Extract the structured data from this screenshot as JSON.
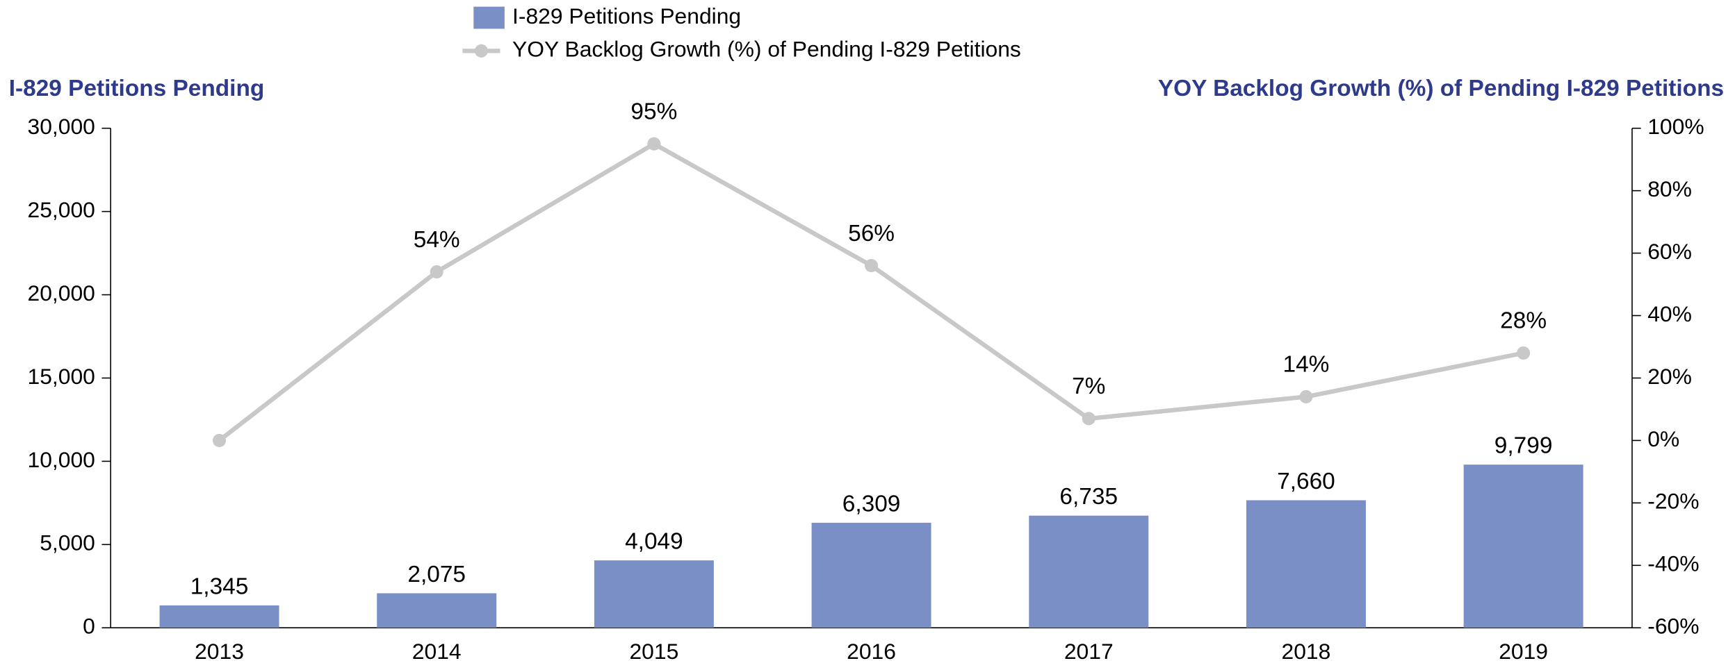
{
  "chart_data": {
    "type": "bar-line",
    "categories": [
      "2013",
      "2014",
      "2015",
      "2016",
      "2017",
      "2018",
      "2019"
    ],
    "series": [
      {
        "name": "I-829 Petitions Pending",
        "color": "#7b8fc7",
        "values": [
          1345,
          2075,
          4049,
          6309,
          6735,
          7660,
          9799
        ],
        "value_labels": [
          "1,345",
          "2,075",
          "4,049",
          "6,309",
          "6,735",
          "7,660",
          "9,799"
        ]
      },
      {
        "name": "YOY Backlog Growth (%) of Pending I-829 Petitions",
        "color": "#c8c8c8",
        "axis": "y2",
        "values": [
          0,
          54,
          95,
          56,
          7,
          14,
          28
        ],
        "value_labels": [
          null,
          "54%",
          "95%",
          "56%",
          "7%",
          "14%",
          "28%"
        ]
      }
    ],
    "y_label": "I-829 Petitions Pending",
    "y2_label": "YOY Backlog Growth (%) of Pending I-829 Petitions",
    "ylim": [
      0,
      30000
    ],
    "yticks": [
      0,
      {
        "value": 5000,
        "label": "5,000"
      },
      {
        "value": 10000,
        "label": "10,000"
      },
      {
        "value": 15000,
        "label": "15,000"
      },
      {
        "value": 20000,
        "label": "20,000"
      },
      {
        "value": 25000,
        "label": "25,000"
      },
      {
        "value": 30000,
        "label": "30,000"
      }
    ],
    "y2lim": [
      -60,
      100
    ],
    "y2ticks": [
      {
        "value": -60,
        "label": "-60%"
      },
      {
        "value": -40,
        "label": "-40%"
      },
      {
        "value": -20,
        "label": "-20%"
      },
      {
        "value": 0,
        "label": "0%"
      },
      {
        "value": 20,
        "label": "20%"
      },
      {
        "value": 40,
        "label": "40%"
      },
      {
        "value": 60,
        "label": "60%"
      },
      {
        "value": 80,
        "label": "80%"
      },
      {
        "value": 100,
        "label": "100%"
      }
    ],
    "legend": "top",
    "grid": false
  }
}
